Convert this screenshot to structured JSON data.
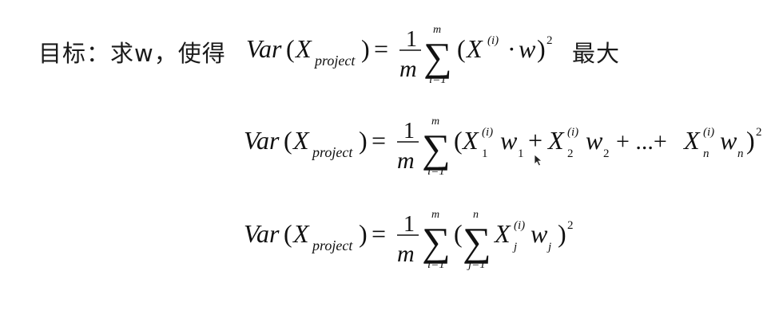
{
  "objective": {
    "lead_text": "目标：求w，使得",
    "tail_text": "最大"
  },
  "equations": {
    "eq1": {
      "lhs_var": "Var",
      "lhs_x": "X",
      "lhs_sub": "project",
      "frac_num": "1",
      "frac_den": "m",
      "sum_top": "m",
      "sum_bottom": "i=1",
      "term_x": "X",
      "term_sup": "(i)",
      "term_dot": "·",
      "term_w": "w",
      "power": "2"
    },
    "eq2": {
      "lhs_var": "Var",
      "lhs_x": "X",
      "lhs_sub": "project",
      "frac_num": "1",
      "frac_den": "m",
      "sum_top": "m",
      "sum_bottom": "i=1",
      "x1": "X",
      "x1_sub": "1",
      "x1_sup": "(i)",
      "w1": "w",
      "w1_sub": "1",
      "plus1": "+",
      "x2": "X",
      "x2_sub": "2",
      "x2_sup": "(i)",
      "w2": "w",
      "w2_sub": "2",
      "ellipsis": "+ ...+",
      "xn": "X",
      "xn_sub": "n",
      "xn_sup": "(i)",
      "wn": "w",
      "wn_sub": "n",
      "power": "2"
    },
    "eq3": {
      "lhs_var": "Var",
      "lhs_x": "X",
      "lhs_sub": "project",
      "frac_num": "1",
      "frac_den": "m",
      "sum_top": "m",
      "sum_bottom": "i=1",
      "inner_sum_top": "n",
      "inner_sum_bottom": "j=1",
      "xj": "X",
      "xj_sub": "j",
      "xj_sup": "(i)",
      "wj": "w",
      "wj_sub": "j",
      "power": "2"
    }
  }
}
